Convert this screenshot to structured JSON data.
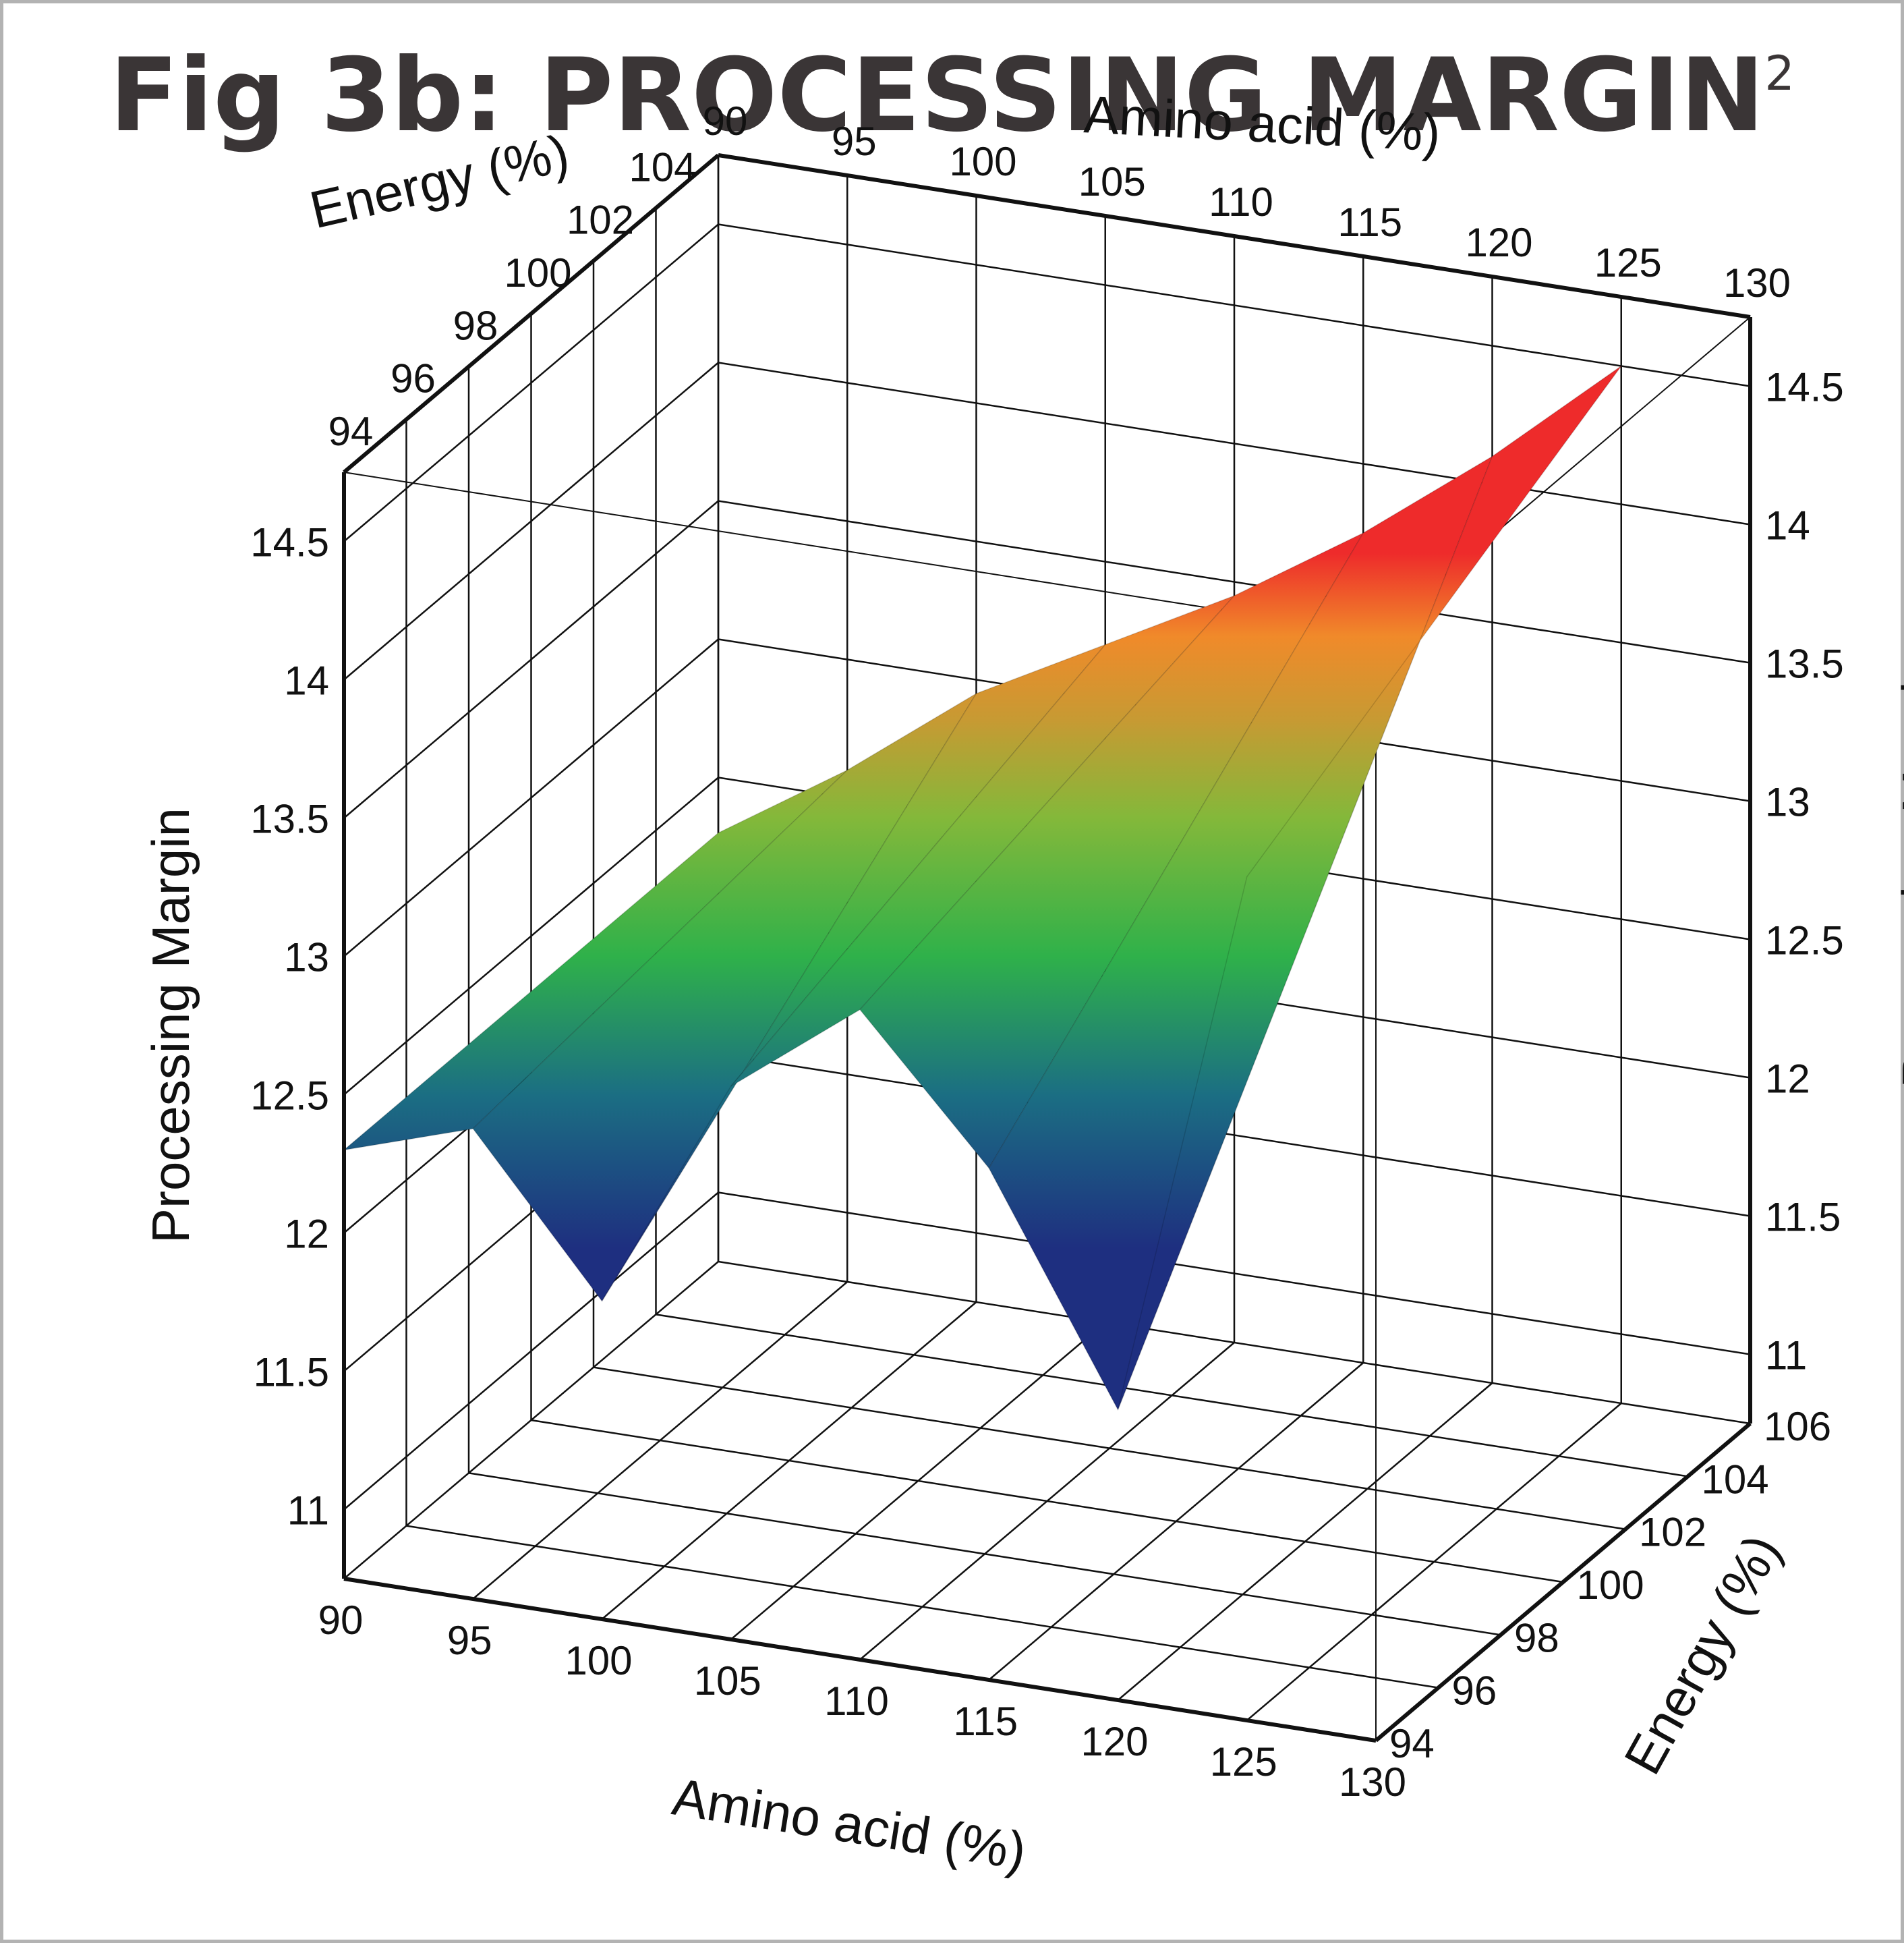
{
  "title": "Fig 3b: PROCESSING MARGIN",
  "title_superscript": "2",
  "chart_data": {
    "type": "surface3d",
    "title": "Fig 3b: PROCESSING MARGIN",
    "x_axis": {
      "label": "Amino acid (%)",
      "ticks": [
        "90",
        "95",
        "100",
        "105",
        "110",
        "115",
        "120",
        "125",
        "130"
      ],
      "range": [
        90,
        130
      ]
    },
    "y_axis": {
      "label": "Energy (%)",
      "ticks": [
        "94",
        "96",
        "98",
        "100",
        "102",
        "104",
        "106"
      ],
      "range": [
        94,
        106
      ]
    },
    "z_axis": {
      "label": "Processing Margin",
      "ticks": [
        "11",
        "11.5",
        "12",
        "12.5",
        "13",
        "13.5",
        "14",
        "14.5"
      ],
      "range": [
        10.75,
        14.75
      ]
    },
    "grid": true,
    "colormap": "blue-green-yellow-red",
    "surface_points": [
      {
        "amino_acid": 90,
        "energy": 106,
        "margin": 12.3
      },
      {
        "amino_acid": 95,
        "energy": 106,
        "margin": 12.6
      },
      {
        "amino_acid": 100,
        "energy": 106,
        "margin": 12.95
      },
      {
        "amino_acid": 105,
        "energy": 106,
        "margin": 13.2
      },
      {
        "amino_acid": 110,
        "energy": 106,
        "margin": 13.45
      },
      {
        "amino_acid": 115,
        "energy": 106,
        "margin": 13.75
      },
      {
        "amino_acid": 120,
        "energy": 106,
        "margin": 14.1
      },
      {
        "amino_acid": 125,
        "energy": 106,
        "margin": 14.5
      },
      {
        "amino_acid": 90,
        "energy": 94,
        "margin": 12.3
      },
      {
        "amino_acid": 95,
        "energy": 94,
        "margin": 12.45
      },
      {
        "amino_acid": 100,
        "energy": 94,
        "margin": 11.9
      },
      {
        "amino_acid": 105,
        "energy": 94,
        "margin": 12.75
      },
      {
        "amino_acid": 110,
        "energy": 94,
        "margin": 13.1
      },
      {
        "amino_acid": 115,
        "energy": 94,
        "margin": 12.6
      },
      {
        "amino_acid": 120,
        "energy": 94,
        "margin": 11.8
      },
      {
        "amino_acid": 125,
        "energy": 94,
        "margin": 13.8
      }
    ]
  }
}
